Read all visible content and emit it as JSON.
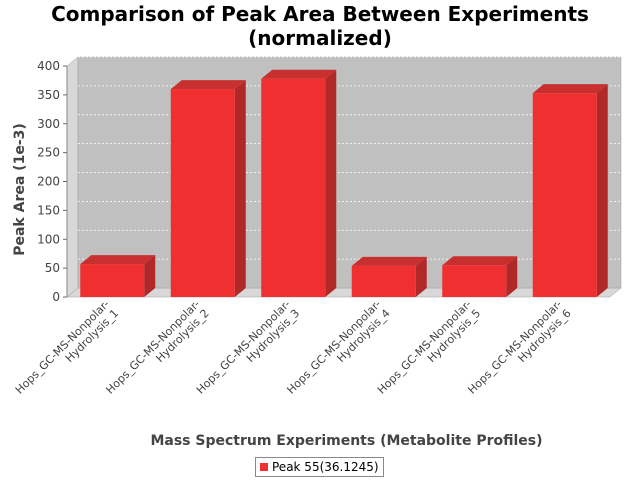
{
  "chart_data": {
    "type": "bar",
    "title": "Comparison of Peak Area Between Experiments\n(normalized)",
    "xlabel": "Mass Spectrum Experiments (Metabolite Profiles)",
    "ylabel": "Peak Area (1e-3)",
    "ylim": [
      0,
      400
    ],
    "yticks": [
      "0",
      "50",
      "100",
      "150",
      "200",
      "250",
      "300",
      "350",
      "400"
    ],
    "grid": true,
    "legend_position": "bottom",
    "categories": [
      [
        "Hops_GC-MS-Nonpolar-",
        "Hydrolysis_1"
      ],
      [
        "Hops_GC-MS-Nonpolar-",
        "Hydrolysis_2"
      ],
      [
        "Hops_GC-MS-Nonpolar-",
        "Hydrolysis_3"
      ],
      [
        "Hops_GC-MS-Nonpolar-",
        "Hydrolysis_4"
      ],
      [
        "Hops_GC-MS-Nonpolar-",
        "Hydrolysis_5"
      ],
      [
        "Hops_GC-MS-Nonpolar-",
        "Hydrolysis_6"
      ]
    ],
    "series": [
      {
        "name": "Peak 55(36.1245)",
        "values": [
          57,
          360,
          378,
          54,
          55,
          353
        ],
        "color": "#f03030"
      }
    ],
    "plot_background": "#c0c0c0"
  }
}
